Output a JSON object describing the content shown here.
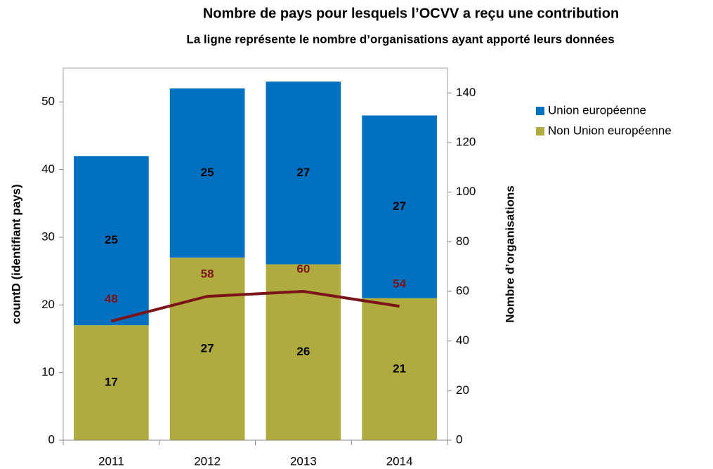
{
  "chart_data": {
    "type": "bar",
    "stacked": true,
    "title": "Nombre de pays pour lesquels l’OCVV a reçu une contribution",
    "subtitle": "La ligne représente le nombre d’organisations ayant apporté leurs données",
    "y_label": "countD (identifiant pays)",
    "y2_label": "Nombre d’organisations",
    "categories": [
      "2011",
      "2012",
      "2013",
      "2014"
    ],
    "series": [
      {
        "name": "Union européenne",
        "color": "#0070c0",
        "values": [
          25,
          25,
          27,
          27
        ]
      },
      {
        "name": "Non Union européenne",
        "color": "#afab3f",
        "values": [
          17,
          27,
          26,
          21
        ]
      },
      {
        "type": "line",
        "axis": "y2",
        "color": "#7b1418",
        "values": [
          48,
          58,
          60,
          54
        ]
      }
    ],
    "ylim": [
      0,
      55
    ],
    "yticks": [
      0,
      10,
      20,
      30,
      40,
      50
    ],
    "y2lim": [
      0,
      150
    ],
    "y2ticks": [
      0,
      20,
      40,
      60,
      80,
      100,
      120,
      140
    ],
    "legend": "right"
  }
}
